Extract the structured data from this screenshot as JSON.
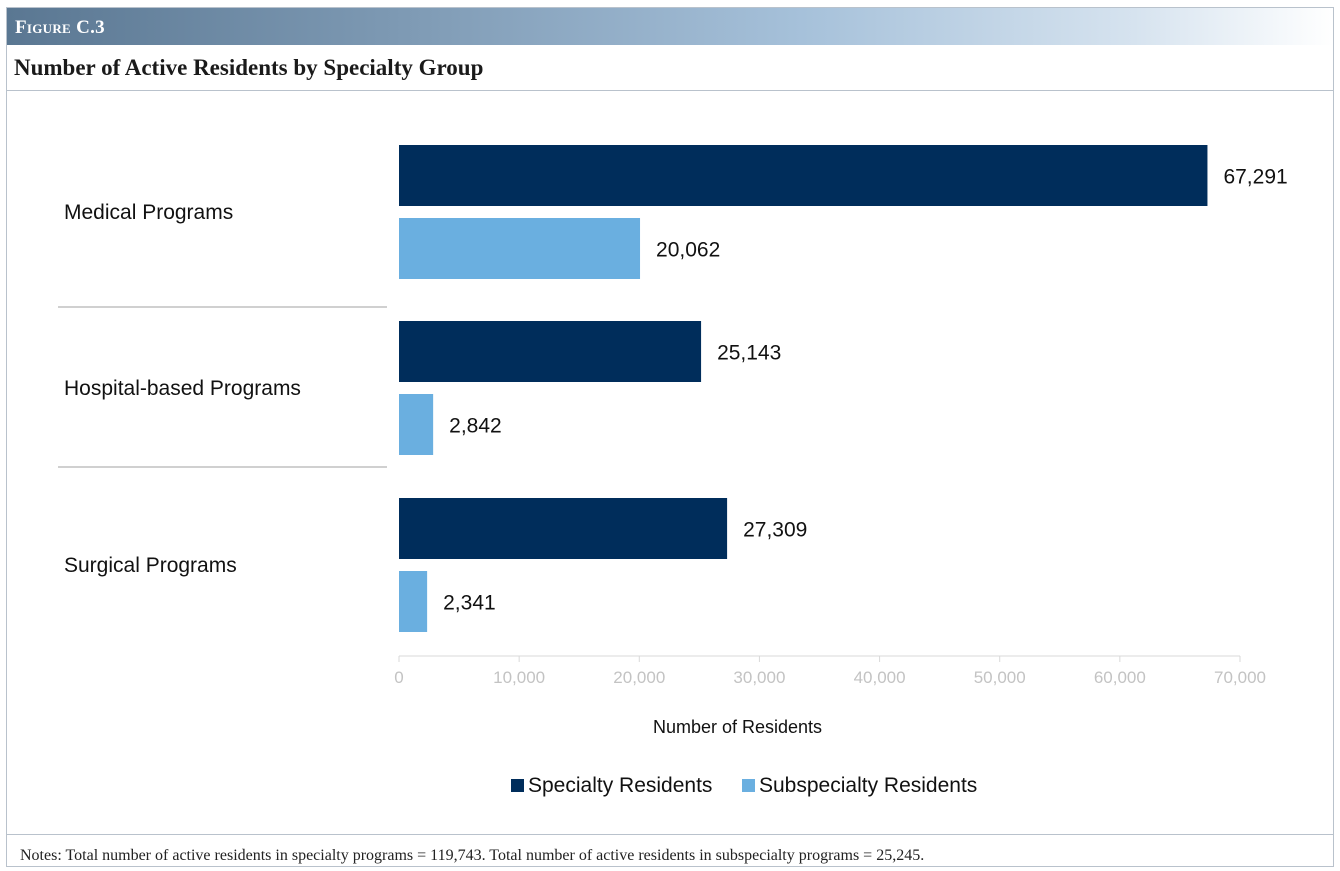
{
  "figure": {
    "label": "Figure C.3",
    "title": "Number of Active Residents by Specialty Group",
    "notes": "Notes: Total number of active residents in specialty programs = 119,743. Total number of active residents in subspecialty programs = 25,245."
  },
  "chart_data": {
    "type": "bar",
    "orientation": "horizontal",
    "title": "Number of Active Residents by Specialty Group",
    "xlabel": "Number of Residents",
    "ylabel": "",
    "xlim": [
      0,
      70000
    ],
    "x_ticks": [
      0,
      10000,
      20000,
      30000,
      40000,
      50000,
      60000,
      70000
    ],
    "x_tick_labels": [
      "0",
      "10,000",
      "20,000",
      "30,000",
      "40,000",
      "50,000",
      "60,000",
      "70,000"
    ],
    "categories": [
      "Medical Programs",
      "Hospital-based Programs",
      "Surgical Programs"
    ],
    "series": [
      {
        "name": "Specialty Residents",
        "color": "#002d5b",
        "values": [
          67291,
          25143,
          27309
        ],
        "labels": [
          "67,291",
          "25,143",
          "27,309"
        ]
      },
      {
        "name": "Subspecialty Residents",
        "color": "#6aafe0",
        "values": [
          20062,
          2842,
          2341
        ],
        "labels": [
          "20,062",
          "2,842",
          "2,341"
        ]
      }
    ],
    "grid": false,
    "legend": "bottom",
    "data_labels": true
  }
}
